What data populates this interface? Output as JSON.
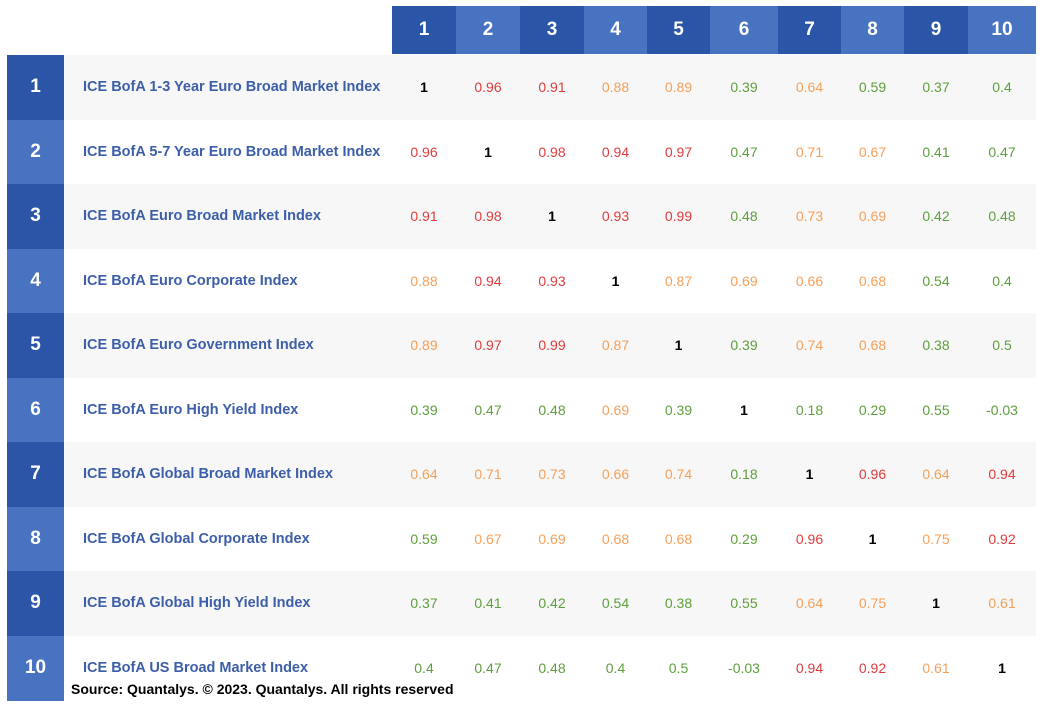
{
  "chart_data": {
    "type": "heatmap",
    "columns": [
      "1",
      "2",
      "3",
      "4",
      "5",
      "6",
      "7",
      "8",
      "9",
      "10"
    ],
    "rows": [
      {
        "num": "1",
        "label": "ICE BofA 1-3 Year Euro Broad Market Index",
        "values": [
          "1",
          "0.96",
          "0.91",
          "0.88",
          "0.89",
          "0.39",
          "0.64",
          "0.59",
          "0.37",
          "0.4"
        ]
      },
      {
        "num": "2",
        "label": "ICE BofA 5-7 Year Euro Broad Market Index",
        "values": [
          "0.96",
          "1",
          "0.98",
          "0.94",
          "0.97",
          "0.47",
          "0.71",
          "0.67",
          "0.41",
          "0.47"
        ]
      },
      {
        "num": "3",
        "label": "ICE BofA Euro Broad Market Index",
        "values": [
          "0.91",
          "0.98",
          "1",
          "0.93",
          "0.99",
          "0.48",
          "0.73",
          "0.69",
          "0.42",
          "0.48"
        ]
      },
      {
        "num": "4",
        "label": "ICE BofA Euro Corporate Index",
        "values": [
          "0.88",
          "0.94",
          "0.93",
          "1",
          "0.87",
          "0.69",
          "0.66",
          "0.68",
          "0.54",
          "0.4"
        ]
      },
      {
        "num": "5",
        "label": "ICE BofA Euro Government Index",
        "values": [
          "0.89",
          "0.97",
          "0.99",
          "0.87",
          "1",
          "0.39",
          "0.74",
          "0.68",
          "0.38",
          "0.5"
        ]
      },
      {
        "num": "6",
        "label": "ICE BofA Euro High Yield Index",
        "values": [
          "0.39",
          "0.47",
          "0.48",
          "0.69",
          "0.39",
          "1",
          "0.18",
          "0.29",
          "0.55",
          "-0.03"
        ]
      },
      {
        "num": "7",
        "label": "ICE BofA Global Broad Market Index",
        "values": [
          "0.64",
          "0.71",
          "0.73",
          "0.66",
          "0.74",
          "0.18",
          "1",
          "0.96",
          "0.64",
          "0.94"
        ]
      },
      {
        "num": "8",
        "label": "ICE BofA Global Corporate Index",
        "values": [
          "0.59",
          "0.67",
          "0.69",
          "0.68",
          "0.68",
          "0.29",
          "0.96",
          "1",
          "0.75",
          "0.92"
        ]
      },
      {
        "num": "9",
        "label": "ICE BofA Global High Yield Index",
        "values": [
          "0.37",
          "0.41",
          "0.42",
          "0.54",
          "0.38",
          "0.55",
          "0.64",
          "0.75",
          "1",
          "0.61"
        ]
      },
      {
        "num": "10",
        "label": "ICE BofA US Broad Market Index",
        "values": [
          "0.4",
          "0.47",
          "0.48",
          "0.4",
          "0.5",
          "-0.03",
          "0.94",
          "0.92",
          "0.61",
          "1"
        ]
      }
    ]
  },
  "colors": {
    "header_dark": "#2b56a8",
    "header_light": "#4873c0",
    "row_band_light": "#f7f7f7",
    "row_band_white": "#ffffff",
    "label_text": "#3d5ea8",
    "value_high": "#e03c3c",
    "value_mid": "#f5a05a",
    "value_low": "#5f9e3e",
    "value_diag": "#000000"
  },
  "source": "Source: Quantalys. © 2023. Quantalys. All rights reserved"
}
